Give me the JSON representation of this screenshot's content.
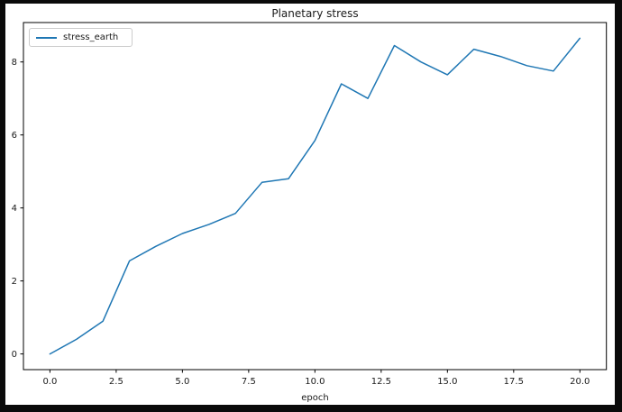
{
  "figure": {
    "page_background": "#0a0a0a",
    "figure_background": "#ffffff"
  },
  "chart_data": {
    "type": "line",
    "title": "Planetary stress",
    "xlabel": "epoch",
    "ylabel": "",
    "grid": false,
    "legend_position": "upper left",
    "xlim": [
      -1,
      21
    ],
    "ylim": [
      -0.43,
      9.08
    ],
    "x_ticks": [
      0,
      2.5,
      5,
      7.5,
      10,
      12.5,
      15,
      17.5,
      20
    ],
    "x_tick_labels": [
      "0.0",
      "2.5",
      "5.0",
      "7.5",
      "10.0",
      "12.5",
      "15.0",
      "17.5",
      "20.0"
    ],
    "y_ticks": [
      0,
      2,
      4,
      6,
      8
    ],
    "y_tick_labels": [
      "0",
      "2",
      "4",
      "6",
      "8"
    ],
    "series": [
      {
        "name": "stress_earth",
        "color": "#1f77b4",
        "x": [
          0,
          1,
          2,
          3,
          4,
          5,
          6,
          7,
          8,
          9,
          10,
          11,
          12,
          13,
          14,
          15,
          16,
          17,
          18,
          19,
          20
        ],
        "y": [
          0.0,
          0.4,
          0.9,
          2.55,
          2.95,
          3.3,
          3.55,
          3.85,
          4.7,
          4.8,
          5.85,
          7.4,
          7.0,
          8.45,
          8.0,
          7.65,
          8.35,
          8.15,
          7.9,
          7.75,
          8.65
        ]
      }
    ],
    "spine_color": "#000000",
    "tick_label_color": "#1a1a1a"
  }
}
